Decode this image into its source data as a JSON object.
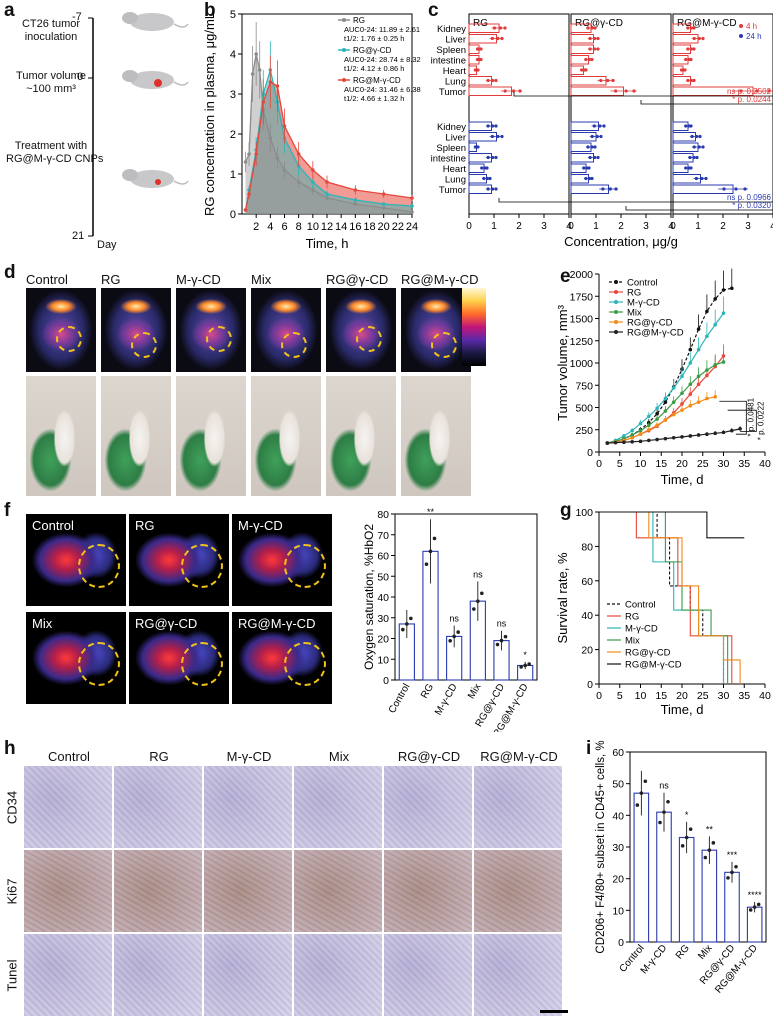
{
  "panels": {
    "a": {
      "label": "a",
      "steps": [
        "CT26 tumor inoculation",
        "Tumor volume ~100 mm³",
        "Treatment with RG@M-γ-CD CNPs"
      ],
      "step_lines": [
        [
          "CT26 tumor",
          "inoculation"
        ],
        [
          "Tumor volume",
          "~100 mm³"
        ],
        [
          "Treatment with",
          "RG@M-γ-CD CNPs"
        ]
      ],
      "days": [
        "-7",
        "0",
        "21"
      ],
      "day_label": "Day"
    },
    "b": {
      "label": "b"
    },
    "c": {
      "label": "c"
    },
    "d": {
      "label": "d",
      "groups": [
        "Control",
        "RG",
        "M-γ-CD",
        "Mix",
        "RG@γ-CD",
        "RG@M-γ-CD"
      ]
    },
    "e": {
      "label": "e"
    },
    "f": {
      "label": "f",
      "groups": [
        "Control",
        "RG",
        "M-γ-CD",
        "Mix",
        "RG@γ-CD",
        "RG@M-γ-CD"
      ]
    },
    "g": {
      "label": "g"
    },
    "h": {
      "label": "h",
      "groups": [
        "Control",
        "RG",
        "M-γ-CD",
        "Mix",
        "RG@γ-CD",
        "RG@M-γ-CD"
      ],
      "rows": [
        "CD34",
        "Ki67",
        "Tunel"
      ]
    },
    "i": {
      "label": "i"
    }
  },
  "chart_data": [
    {
      "id": "b",
      "type": "line",
      "xlabel": "Time, h",
      "ylabel": "RG concentration in plasma, μg/mL",
      "xlim": [
        0,
        24
      ],
      "ylim": [
        0,
        5
      ],
      "xticks": [
        2,
        4,
        6,
        8,
        10,
        12,
        14,
        16,
        18,
        20,
        22,
        24
      ],
      "yticks": [
        0,
        1,
        2,
        3,
        4,
        5
      ],
      "series": [
        {
          "name": "RG",
          "color": "#8c8c8c",
          "x": [
            0.5,
            1,
            1.5,
            2,
            2.5,
            3,
            4,
            5,
            6,
            8,
            10,
            12,
            16,
            20,
            24
          ],
          "y": [
            1.3,
            1.5,
            3.5,
            4.0,
            3.6,
            2.6,
            1.9,
            1.4,
            1.1,
            0.8,
            0.6,
            0.4,
            0.25,
            0.15,
            0.05
          ],
          "auc": "AUC0-24: 11.89 ± 2.61",
          "t12": "t1/2: 1.76 ± 0.25 h"
        },
        {
          "name": "RG@γ-CD",
          "color": "#2bb5b8",
          "x": [
            0.5,
            1,
            2,
            3,
            4,
            5,
            6,
            8,
            10,
            12,
            16,
            20,
            24
          ],
          "y": [
            0.1,
            0.6,
            1.6,
            3.0,
            3.6,
            2.8,
            1.9,
            1.2,
            0.8,
            0.5,
            0.35,
            0.25,
            0.2
          ],
          "auc": "AUC0-24: 28.74 ± 8.32",
          "t12": "t1/2: 4.12 ± 0.86 h"
        },
        {
          "name": "RG@M-γ-CD",
          "color": "#e5483c",
          "x": [
            0.5,
            1,
            2,
            3,
            4,
            5,
            6,
            8,
            10,
            12,
            16,
            20,
            24
          ],
          "y": [
            0.1,
            0.5,
            1.5,
            2.8,
            3.3,
            3.2,
            2.2,
            1.5,
            1.1,
            0.8,
            0.6,
            0.5,
            0.4
          ],
          "auc": "AUC0-24: 31.46 ± 6.38",
          "t12": "t1/2: 4.66 ± 1.32 h"
        }
      ]
    },
    {
      "id": "c",
      "type": "bar",
      "xlabel": "Concentration, μg/g",
      "categories": [
        "Kidney",
        "Liver",
        "Spleen",
        "intestine",
        "Heart",
        "Lung",
        "Tumor"
      ],
      "groups": [
        "RG",
        "RG@γ-CD",
        "RG@M-γ-CD"
      ],
      "legend": [
        {
          "name": "4 h",
          "color": "#e23b3b"
        },
        {
          "name": "24 h",
          "color": "#2a3bb0"
        }
      ],
      "xticks": [
        0,
        1,
        2,
        3,
        4
      ],
      "series": [
        {
          "name": "4 h",
          "group": "RG",
          "values": [
            1.2,
            1.1,
            0.4,
            0.4,
            0.3,
            0.9,
            1.7
          ]
        },
        {
          "name": "4 h",
          "group": "RG@γ-CD",
          "values": [
            0.8,
            0.9,
            0.9,
            0.7,
            0.5,
            1.4,
            2.1
          ]
        },
        {
          "name": "4 h",
          "group": "RG@M-γ-CD",
          "values": [
            0.7,
            1.0,
            0.7,
            0.6,
            0.4,
            0.7,
            3.2
          ]
        },
        {
          "name": "24 h",
          "group": "RG",
          "values": [
            0.9,
            1.1,
            0.3,
            0.9,
            0.6,
            0.7,
            0.9
          ]
        },
        {
          "name": "24 h",
          "group": "RG@γ-CD",
          "values": [
            1.1,
            1.0,
            0.8,
            0.9,
            0.6,
            0.7,
            1.5
          ]
        },
        {
          "name": "24 h",
          "group": "RG@M-γ-CD",
          "values": [
            0.6,
            0.9,
            1.0,
            0.8,
            0.6,
            1.1,
            2.4
          ]
        }
      ],
      "stats": [
        "ns p. 0.2502",
        "* p. 0.0244",
        "ns p. 0.0966",
        "* p. 0.0320"
      ]
    },
    {
      "id": "e",
      "type": "line",
      "xlabel": "Time, d",
      "ylabel": "Tumor volume, mm³",
      "xlim": [
        0,
        40
      ],
      "ylim": [
        0,
        2000
      ],
      "xticks": [
        0,
        5,
        10,
        15,
        20,
        25,
        30,
        35,
        40
      ],
      "yticks": [
        0,
        250,
        500,
        750,
        1000,
        1250,
        1500,
        1750,
        2000
      ],
      "series": [
        {
          "name": "Control",
          "color": "#111111",
          "dashed": true,
          "x": [
            2,
            4,
            6,
            8,
            10,
            12,
            14,
            16,
            18,
            20,
            22,
            24,
            26,
            28,
            30,
            32
          ],
          "y": [
            100,
            120,
            150,
            190,
            250,
            330,
            430,
            560,
            730,
            930,
            1150,
            1380,
            1580,
            1720,
            1820,
            1840
          ]
        },
        {
          "name": "RG",
          "color": "#e5483c",
          "x": [
            2,
            4,
            6,
            8,
            10,
            12,
            14,
            16,
            18,
            20,
            22,
            24,
            26,
            28,
            30
          ],
          "y": [
            100,
            110,
            130,
            160,
            200,
            240,
            290,
            360,
            440,
            540,
            650,
            760,
            860,
            960,
            1080
          ]
        },
        {
          "name": "M-γ-CD",
          "color": "#2bb5b8",
          "x": [
            2,
            4,
            6,
            8,
            10,
            12,
            14,
            16,
            18,
            20,
            22,
            24,
            26,
            28,
            30
          ],
          "y": [
            100,
            130,
            180,
            240,
            320,
            400,
            490,
            600,
            720,
            850,
            1000,
            1150,
            1300,
            1430,
            1560
          ]
        },
        {
          "name": "Mix",
          "color": "#3a9b47",
          "x": [
            2,
            4,
            6,
            8,
            10,
            12,
            14,
            16,
            18,
            20,
            22,
            24,
            26,
            28,
            30
          ],
          "y": [
            100,
            120,
            150,
            190,
            240,
            300,
            370,
            460,
            560,
            660,
            760,
            850,
            920,
            980,
            1010
          ]
        },
        {
          "name": "RG@γ-CD",
          "color": "#f28b1a",
          "x": [
            2,
            4,
            6,
            8,
            10,
            12,
            14,
            16,
            18,
            20,
            22,
            24,
            26,
            28
          ],
          "y": [
            100,
            110,
            130,
            160,
            200,
            250,
            300,
            360,
            420,
            470,
            520,
            560,
            600,
            620
          ]
        },
        {
          "name": "RG@M-γ-CD",
          "color": "#222222",
          "x": [
            2,
            4,
            6,
            8,
            10,
            12,
            14,
            16,
            18,
            20,
            22,
            24,
            26,
            28,
            30,
            32,
            34
          ],
          "y": [
            100,
            105,
            110,
            115,
            120,
            130,
            140,
            150,
            160,
            170,
            180,
            190,
            200,
            210,
            220,
            240,
            260
          ]
        }
      ],
      "stats": [
        "* p. 0.0481",
        "* p. 0.0222"
      ]
    },
    {
      "id": "f",
      "type": "bar",
      "ylabel": "Oxygen saturation, %HbO2",
      "categories": [
        "Control",
        "RG",
        "M-γ-CD",
        "Mix",
        "RG@γ-CD",
        "RG@M-γ-CD"
      ],
      "values": [
        27,
        62,
        21,
        38,
        19,
        7
      ],
      "ylim": [
        0,
        80
      ],
      "yticks": [
        0,
        10,
        20,
        30,
        40,
        50,
        60,
        70,
        80
      ],
      "labels": [
        "",
        "**",
        "ns",
        "ns",
        "ns",
        "*"
      ]
    },
    {
      "id": "g",
      "type": "line",
      "xlabel": "Time, d",
      "ylabel": "Survival rate, %",
      "xlim": [
        0,
        40
      ],
      "ylim": [
        0,
        100
      ],
      "xticks": [
        0,
        5,
        10,
        15,
        20,
        25,
        30,
        35,
        40
      ],
      "yticks": [
        0,
        20,
        40,
        60,
        80,
        100
      ],
      "series": [
        {
          "name": "Control",
          "color": "#111111",
          "dashed": true,
          "steps": [
            [
              0,
              100
            ],
            [
              14,
              85
            ],
            [
              17,
              57
            ],
            [
              22,
              43
            ],
            [
              25,
              28
            ],
            [
              30,
              0
            ]
          ]
        },
        {
          "name": "RG",
          "color": "#e5483c",
          "steps": [
            [
              0,
              100
            ],
            [
              9,
              85
            ],
            [
              19,
              57
            ],
            [
              22,
              28
            ],
            [
              32,
              14
            ],
            [
              32,
              0
            ]
          ]
        },
        {
          "name": "M-γ-CD",
          "color": "#2bb5b8",
          "steps": [
            [
              0,
              100
            ],
            [
              13,
              71
            ],
            [
              18,
              43
            ],
            [
              24,
              28
            ],
            [
              30,
              0
            ]
          ]
        },
        {
          "name": "Mix",
          "color": "#3a9b47",
          "steps": [
            [
              0,
              100
            ],
            [
              16,
              71
            ],
            [
              20,
              43
            ],
            [
              27,
              28
            ],
            [
              31,
              0
            ]
          ]
        },
        {
          "name": "RG@γ-CD",
          "color": "#f28b1a",
          "steps": [
            [
              0,
              100
            ],
            [
              12,
              85
            ],
            [
              20,
              57
            ],
            [
              24,
              28
            ],
            [
              30,
              14
            ],
            [
              34,
              0
            ]
          ]
        },
        {
          "name": "RG@M-γ-CD",
          "color": "#111111",
          "steps": [
            [
              0,
              100
            ],
            [
              26,
              85
            ],
            [
              35,
              85
            ]
          ]
        }
      ]
    },
    {
      "id": "i",
      "type": "bar",
      "ylabel": "CD206+ F4/80+ subset in CD45+ cells, %",
      "categories": [
        "Control",
        "M-γ-CD",
        "RG",
        "Mix",
        "RG@γ-CD",
        "RG@M-γ-CD"
      ],
      "values": [
        47,
        41,
        33,
        29,
        22,
        11
      ],
      "ylim": [
        0,
        60
      ],
      "yticks": [
        0,
        10,
        20,
        30,
        40,
        50,
        60
      ],
      "labels": [
        "",
        "ns",
        "*",
        "**",
        "***",
        "****"
      ]
    }
  ]
}
